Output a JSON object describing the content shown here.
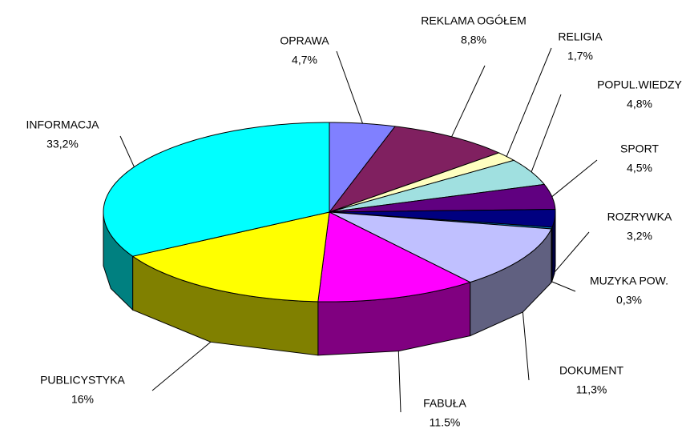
{
  "chart_data": {
    "type": "pie",
    "categories": [
      "OPRAWA",
      "REKLAMA OGÓŁEM",
      "RELIGIA",
      "POPUL.WIEDZY",
      "SPORT",
      "ROZRYWKA",
      "MUZYKA POW.",
      "DOKUMENT",
      "FABUŁA",
      "PUBLICYSTYKA",
      "INFORMACJA"
    ],
    "values": [
      4.7,
      8.8,
      1.7,
      4.8,
      4.5,
      3.2,
      0.3,
      11.3,
      11.5,
      16,
      33.2
    ],
    "value_labels": [
      "4,7%",
      "8,8%",
      "1,7%",
      "4,8%",
      "4,5%",
      "3,2%",
      "0,3%",
      "11,3%",
      "11.5%",
      "16%",
      "33,2%"
    ],
    "colors": [
      "#8080ff",
      "#802060",
      "#ffffc0",
      "#a0e0e0",
      "#600080",
      "#000080",
      "#0080c0",
      "#c0c0ff",
      "#ff00ff",
      "#ffff00",
      "#00ffff"
    ]
  }
}
